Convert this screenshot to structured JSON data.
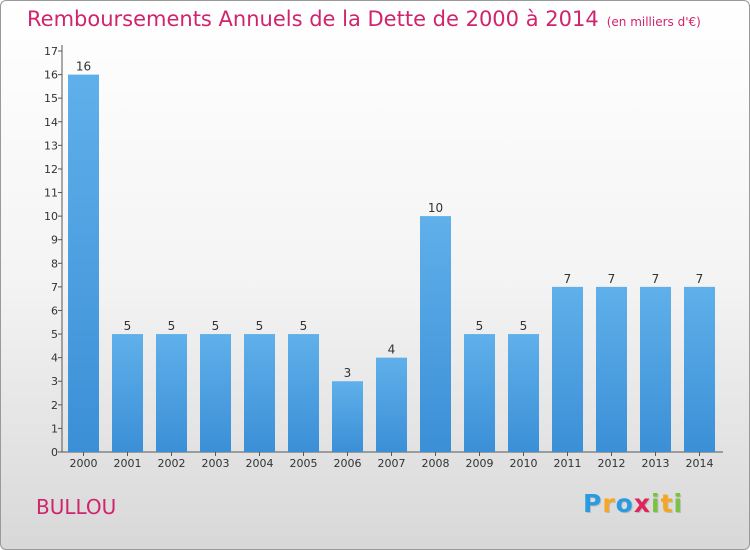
{
  "chart_data": {
    "type": "bar",
    "title": "Remboursements Annuels de la Dette de 2000 à 2014",
    "subtitle": "(en milliers d'€)",
    "categories": [
      "2000",
      "2001",
      "2002",
      "2003",
      "2004",
      "2005",
      "2006",
      "2007",
      "2008",
      "2009",
      "2010",
      "2011",
      "2012",
      "2013",
      "2014"
    ],
    "values": [
      16,
      5,
      5,
      5,
      5,
      5,
      3,
      4,
      10,
      5,
      5,
      7,
      7,
      7,
      7
    ],
    "ylim": [
      0,
      17
    ],
    "yticks": [
      0,
      1,
      2,
      3,
      4,
      5,
      6,
      7,
      8,
      9,
      10,
      11,
      12,
      13,
      14,
      15,
      16,
      17
    ],
    "grid": false,
    "bar_color": "#3b8fd6"
  },
  "place_name": "BULLOU",
  "logo": {
    "letters": [
      "P",
      "r",
      "o",
      "x",
      "i",
      "t",
      "i"
    ],
    "colors": [
      "#2a9be0",
      "#f5a623",
      "#2a9be0",
      "#e0245e",
      "#7cc242",
      "#f5a623",
      "#7cc242"
    ]
  }
}
